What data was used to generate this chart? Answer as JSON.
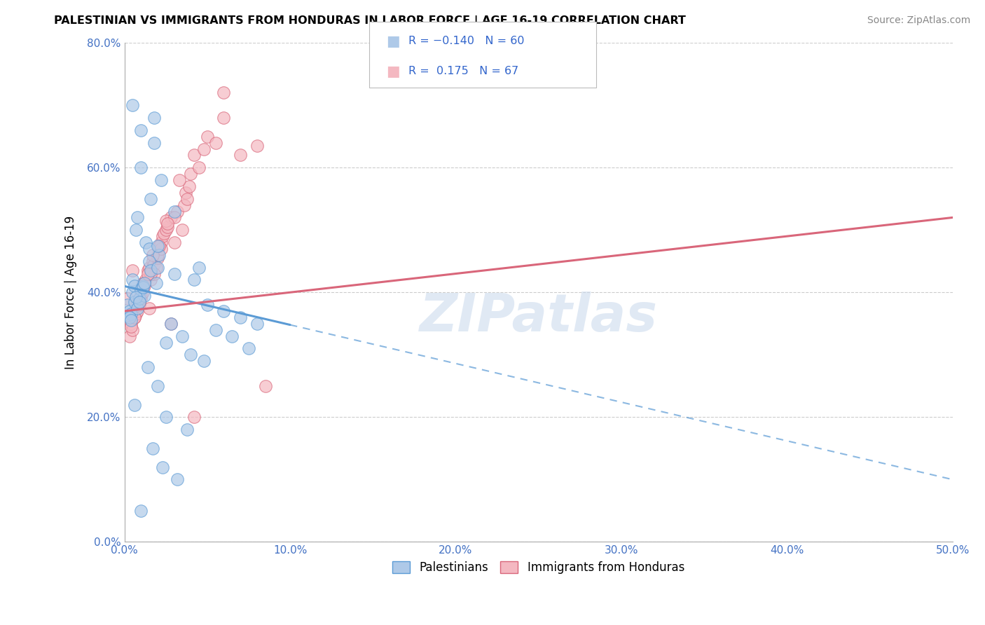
{
  "title": "PALESTINIAN VS IMMIGRANTS FROM HONDURAS IN LABOR FORCE | AGE 16-19 CORRELATION CHART",
  "source": "Source: ZipAtlas.com",
  "ylabel_label": "In Labor Force | Age 16-19",
  "xlim": [
    0.0,
    50.0
  ],
  "ylim": [
    0.0,
    80.0
  ],
  "yticks": [
    0.0,
    20.0,
    40.0,
    60.0,
    80.0
  ],
  "xticks": [
    0.0,
    10.0,
    20.0,
    30.0,
    40.0,
    50.0
  ],
  "series1_label": "Palestinians",
  "series1_R": -0.14,
  "series1_N": 60,
  "series1_color": "#aec9e8",
  "series1_edge_color": "#5b9bd5",
  "series2_label": "Immigrants from Honduras",
  "series2_R": 0.175,
  "series2_N": 67,
  "series2_color": "#f4b8c1",
  "series2_edge_color": "#d9667a",
  "watermark": "ZIPatlas",
  "blue_line_x0": 0.0,
  "blue_line_y0": 41.0,
  "blue_line_x1": 50.0,
  "blue_line_y1": 10.0,
  "blue_solid_end": 10.0,
  "pink_line_x0": 0.0,
  "pink_line_y0": 37.0,
  "pink_line_x1": 50.0,
  "pink_line_y1": 52.0,
  "pink_solid_end": 50.0,
  "blue_scatter_x": [
    0.2,
    0.3,
    0.4,
    0.5,
    0.5,
    0.6,
    0.6,
    0.7,
    0.8,
    0.9,
    1.0,
    1.0,
    1.0,
    1.1,
    1.2,
    1.3,
    1.4,
    1.5,
    1.6,
    1.7,
    1.8,
    1.9,
    2.0,
    2.1,
    2.2,
    2.3,
    2.5,
    2.8,
    3.0,
    3.2,
    3.5,
    3.8,
    4.0,
    4.2,
    4.5,
    4.8,
    5.0,
    5.5,
    6.0,
    6.5,
    7.0,
    7.5,
    8.0,
    0.3,
    0.4,
    0.5,
    0.6,
    0.7,
    0.8,
    0.9,
    1.1,
    1.2,
    1.5,
    1.6,
    1.8,
    2.0,
    2.5,
    3.0,
    1.0,
    2.0
  ],
  "blue_scatter_y": [
    38.0,
    37.0,
    36.5,
    40.0,
    42.0,
    38.5,
    41.0,
    50.0,
    37.5,
    39.0,
    40.5,
    66.0,
    5.0,
    41.0,
    39.5,
    48.0,
    28.0,
    47.0,
    55.0,
    15.0,
    68.0,
    41.5,
    25.0,
    46.0,
    58.0,
    12.0,
    32.0,
    35.0,
    43.0,
    10.0,
    33.0,
    18.0,
    30.0,
    42.0,
    44.0,
    29.0,
    38.0,
    34.0,
    37.0,
    33.0,
    36.0,
    31.0,
    35.0,
    36.0,
    35.5,
    70.0,
    22.0,
    39.2,
    52.0,
    38.5,
    40.8,
    41.5,
    45.0,
    43.5,
    64.0,
    44.0,
    20.0,
    53.0,
    60.0,
    47.5
  ],
  "pink_scatter_x": [
    0.2,
    0.3,
    0.4,
    0.5,
    0.5,
    0.6,
    0.7,
    0.8,
    0.9,
    1.0,
    1.0,
    1.1,
    1.2,
    1.3,
    1.4,
    1.5,
    1.6,
    1.7,
    1.8,
    1.9,
    2.0,
    2.1,
    2.2,
    2.3,
    2.4,
    2.5,
    2.6,
    2.8,
    3.0,
    3.2,
    3.5,
    3.6,
    3.7,
    3.8,
    3.9,
    4.0,
    4.2,
    4.5,
    4.8,
    5.0,
    5.5,
    6.0,
    7.0,
    8.5,
    0.4,
    0.6,
    0.8,
    1.0,
    1.2,
    1.5,
    1.8,
    2.0,
    2.5,
    3.0,
    1.6,
    2.6,
    1.4,
    2.2,
    1.1,
    2.1,
    3.3,
    0.9,
    1.7,
    4.2,
    6.0,
    8.0,
    2.8
  ],
  "pink_scatter_y": [
    39.0,
    33.0,
    35.0,
    34.0,
    43.5,
    36.0,
    36.5,
    37.0,
    38.0,
    40.0,
    39.5,
    41.5,
    41.0,
    42.0,
    43.5,
    44.0,
    42.0,
    45.0,
    44.5,
    44.0,
    45.5,
    47.5,
    48.0,
    49.0,
    49.5,
    50.0,
    50.5,
    52.0,
    48.0,
    53.0,
    50.0,
    54.0,
    56.0,
    55.0,
    57.0,
    59.0,
    62.0,
    60.0,
    63.0,
    65.0,
    64.0,
    72.0,
    62.0,
    25.0,
    34.5,
    36.0,
    38.5,
    39.0,
    41.5,
    37.5,
    43.0,
    46.0,
    51.5,
    52.0,
    43.0,
    51.0,
    43.0,
    47.0,
    40.0,
    47.5,
    58.0,
    38.5,
    46.0,
    20.0,
    68.0,
    63.5,
    35.0
  ]
}
